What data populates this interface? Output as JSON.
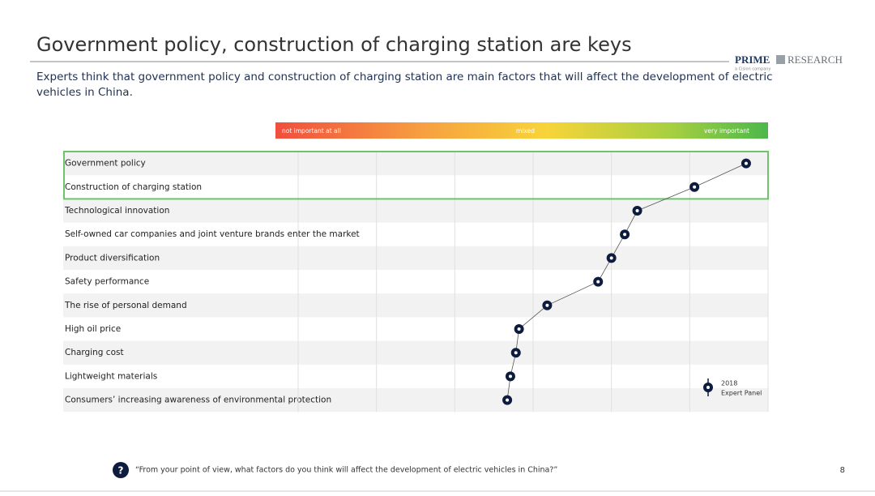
{
  "header": {
    "title": "Government policy, construction of charging station are keys",
    "subtitle_lines": [
      "Experts think that government policy and construction of charging station are main factors that will affect the development of electric",
      "vehicles in China."
    ]
  },
  "logo": {
    "brand": "PRIME",
    "word": "RESEARCH",
    "tagline": "a Cision company"
  },
  "chart_data": {
    "type": "dot",
    "scale_labels": [
      "not important at all",
      "mixed",
      "very important"
    ],
    "categories": [
      "Government policy",
      "Construction of charging station",
      "Technological innovation",
      "Self-owned car companies and joint venture brands enter the market",
      "Product diversification",
      "Safety performance",
      "The rise of personal demand",
      "High oil price",
      "Charging cost",
      "Lightweight materials",
      "Consumers’ increasing awareness of environmental protection"
    ],
    "series": [
      {
        "name": "2018",
        "color": "#0d1b3e",
        "values": [
          5.72,
          5.06,
          4.33,
          4.17,
          4.0,
          3.83,
          3.18,
          2.82,
          2.78,
          2.71,
          2.67
        ]
      }
    ],
    "legend_note": "Expert Panel",
    "xlim": [
      0,
      6
    ],
    "xticks": [
      0,
      1,
      2,
      3,
      4,
      5,
      6
    ],
    "grid": true,
    "highlight": [
      0,
      1
    ]
  },
  "footer": {
    "question": "“From your point of view, what factors do you think will affect the development of electric vehicles in China?”",
    "icon": "?",
    "page": 8
  }
}
